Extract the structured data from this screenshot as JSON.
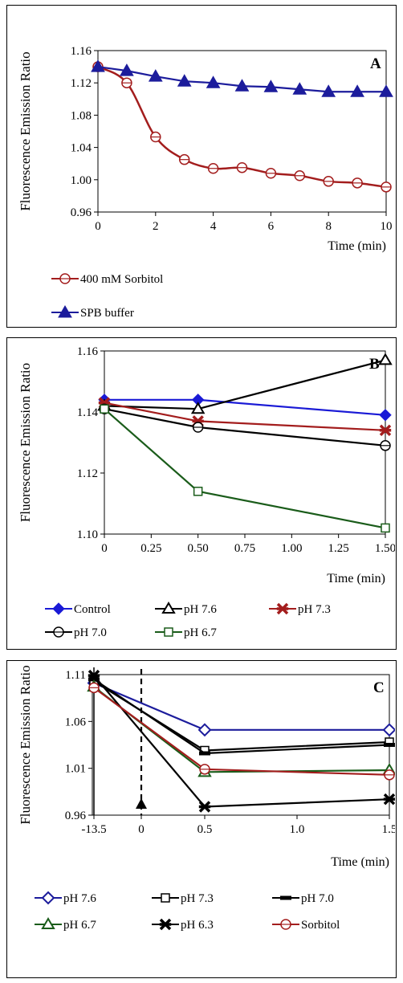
{
  "chart_data": [
    {
      "type": "line",
      "title": "",
      "panel_label": "A",
      "ylabel": "Fluorescence Emission Ratio",
      "xlabel": "Time (min)",
      "xlim": [
        0,
        10
      ],
      "ylim": [
        0.96,
        1.16
      ],
      "xticks": [
        "0",
        "2",
        "4",
        "6",
        "8",
        "10"
      ],
      "yticks": [
        "0.96",
        "1.00",
        "1.04",
        "1.08",
        "1.12",
        "1.16"
      ],
      "legend_position": "bottom",
      "series": [
        {
          "name": "400 mM Sorbitol",
          "color": "#a31d1d",
          "marker": "open-circle",
          "smooth": true,
          "x": [
            0,
            1,
            2,
            3,
            4,
            5,
            6,
            7,
            8,
            9,
            10
          ],
          "y": [
            1.14,
            1.12,
            1.053,
            1.025,
            1.014,
            1.015,
            1.008,
            1.005,
            0.998,
            0.996,
            0.991
          ]
        },
        {
          "name": "SPB buffer",
          "color": "#1c1c9c",
          "marker": "triangle-filled",
          "smooth": false,
          "x": [
            0,
            1,
            2,
            3,
            4,
            5,
            6,
            7,
            8,
            9,
            10
          ],
          "y": [
            1.14,
            1.135,
            1.128,
            1.122,
            1.12,
            1.116,
            1.115,
            1.112,
            1.109,
            1.109,
            1.109
          ]
        }
      ]
    },
    {
      "type": "line",
      "title": "",
      "panel_label": "B",
      "ylabel": "Fluorescence Emission Ratio",
      "xlabel": "Time (min)",
      "xlim": [
        0,
        1.5
      ],
      "ylim": [
        1.1,
        1.16
      ],
      "xticks": [
        "0",
        "0.25",
        "0.50",
        "0.75",
        "1.00",
        "1.25",
        "1.50"
      ],
      "yticks": [
        "1.10",
        "1.12",
        "1.14",
        "1.16"
      ],
      "legend_position": "bottom",
      "series": [
        {
          "name": "Control",
          "color": "#1a1ad6",
          "marker": "diamond-filled",
          "x": [
            0,
            0.5,
            1.5
          ],
          "y": [
            1.144,
            1.144,
            1.139
          ]
        },
        {
          "name": "pH 7.6",
          "color": "#000000",
          "marker": "triangle-open",
          "x": [
            0,
            0.5,
            1.5
          ],
          "y": [
            1.142,
            1.141,
            1.157
          ]
        },
        {
          "name": "pH 7.3",
          "color": "#a31d1d",
          "marker": "star",
          "x": [
            0,
            0.5,
            1.5
          ],
          "y": [
            1.143,
            1.137,
            1.134
          ]
        },
        {
          "name": "pH 7.0",
          "color": "#000000",
          "marker": "circle-open",
          "x": [
            0,
            0.5,
            1.5
          ],
          "y": [
            1.141,
            1.135,
            1.129
          ]
        },
        {
          "name": "pH 6.7",
          "color": "#1a5c1a",
          "marker": "square-open",
          "x": [
            0,
            0.5,
            1.5
          ],
          "y": [
            1.141,
            1.114,
            1.102
          ]
        }
      ]
    },
    {
      "type": "line",
      "title": "",
      "panel_label": "C",
      "ylabel": "Fluorescence Emission Ratio",
      "xlabel": "Time (min)",
      "ylim": [
        0.96,
        1.11
      ],
      "xticks": [
        "-13.5",
        "0",
        "0.5",
        "1.0",
        "1.5"
      ],
      "yticks": [
        "0.96",
        "1.01",
        "1.06",
        "1.11"
      ],
      "legend_position": "bottom",
      "annotations": [
        {
          "type": "vertical-dashed-line",
          "x": "0"
        },
        {
          "type": "triangle-marker",
          "x": "0"
        }
      ],
      "series": [
        {
          "name": "pH 7.6",
          "color": "#1c1c9c",
          "marker": "diamond-open",
          "x": [
            "-13.5",
            "0.5",
            "1.5"
          ],
          "y": [
            1.101,
            1.051,
            1.051
          ]
        },
        {
          "name": "pH 7.3",
          "color": "#000000",
          "marker": "square-open",
          "x": [
            "-13.5",
            "0.5",
            "1.5"
          ],
          "y": [
            1.103,
            1.029,
            1.038
          ]
        },
        {
          "name": "pH 7.0",
          "color": "#000000",
          "marker": "dash",
          "x": [
            "-13.5",
            "0.5",
            "1.5"
          ],
          "y": [
            1.105,
            1.026,
            1.035
          ]
        },
        {
          "name": "pH 6.7",
          "color": "#1a5c1a",
          "marker": "triangle-open",
          "x": [
            "-13.5",
            "0.5",
            "1.5"
          ],
          "y": [
            1.097,
            1.006,
            1.008
          ]
        },
        {
          "name": "pH 6.3",
          "color": "#000000",
          "marker": "star",
          "x": [
            "-13.5",
            "0.5",
            "1.5"
          ],
          "y": [
            1.109,
            0.969,
            0.977
          ]
        },
        {
          "name": "Sorbitol",
          "color": "#a31d1d",
          "marker": "circle-open",
          "x": [
            "-13.5",
            "0.5",
            "1.5"
          ],
          "y": [
            1.096,
            1.009,
            1.003
          ]
        }
      ]
    }
  ]
}
